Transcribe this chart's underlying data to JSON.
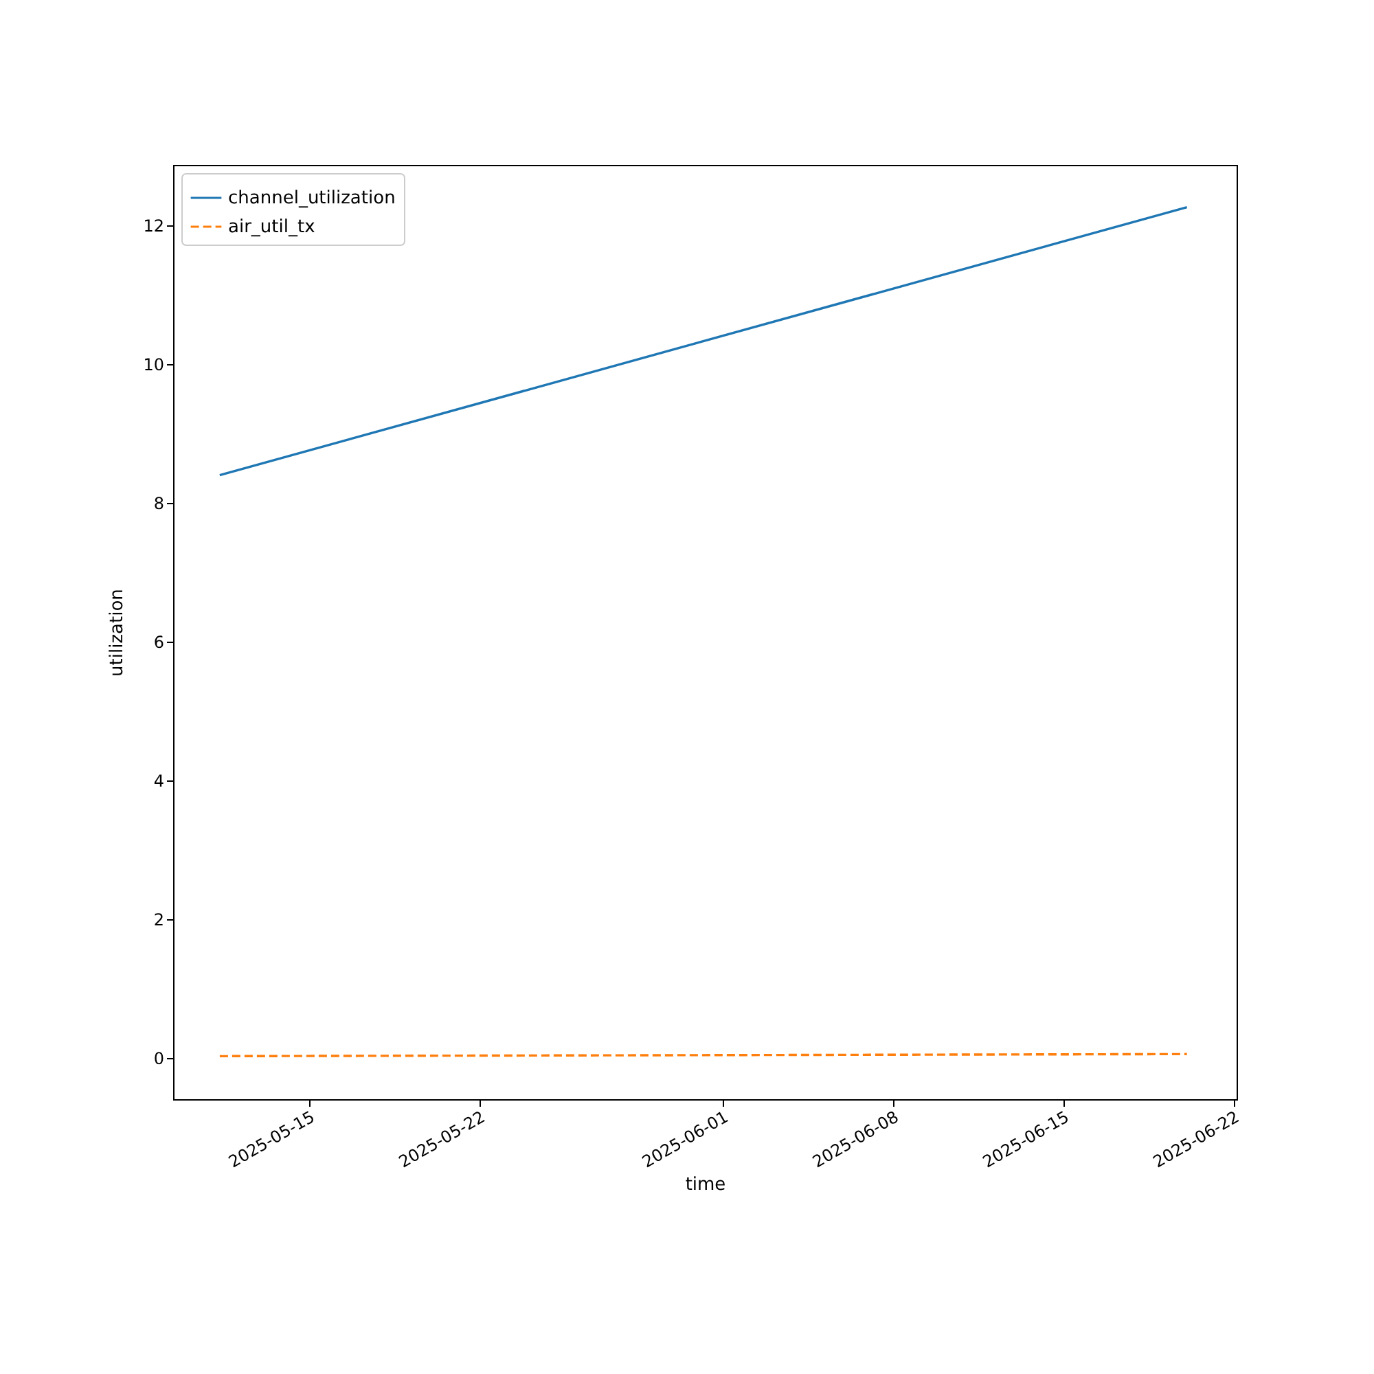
{
  "chart_data": {
    "type": "line",
    "xlabel": "time",
    "ylabel": "utilization",
    "x": [
      "2025-05-11T08:00",
      "2025-06-20T02:00"
    ],
    "series": [
      {
        "name": "channel_utilization",
        "color": "#1f77b4",
        "line_style": "solid",
        "values": [
          8.4,
          12.26
        ]
      },
      {
        "name": "air_util_tx",
        "color": "#ff7f0e",
        "line_style": "dashed",
        "values": [
          0.03,
          0.06
        ]
      }
    ],
    "xlim": [
      "2025-05-09T10:00",
      "2025-06-22T03:00"
    ],
    "xticks": [
      "2025-05-15",
      "2025-05-22",
      "2025-06-01",
      "2025-06-08",
      "2025-06-15",
      "2025-06-22"
    ],
    "ylim": [
      -0.59,
      12.87
    ],
    "yticks": [
      0,
      2,
      4,
      6,
      8,
      10,
      12
    ],
    "grid": false,
    "legend": "top left",
    "marker": "none"
  }
}
